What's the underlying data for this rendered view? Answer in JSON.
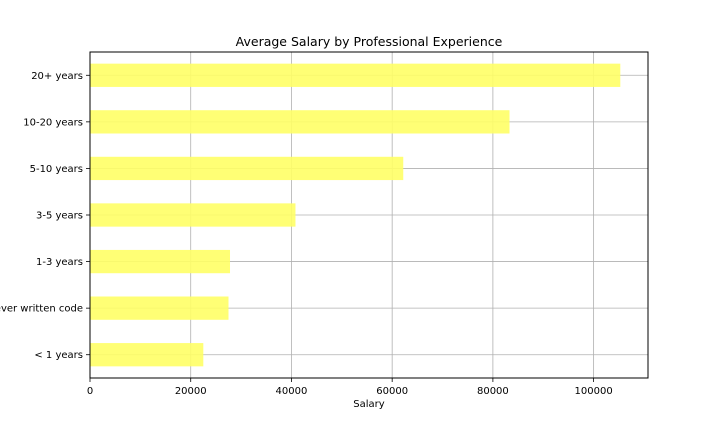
{
  "chart_data": {
    "type": "bar",
    "orientation": "horizontal",
    "title": "Average Salary by Professional Experience",
    "xlabel": "Salary",
    "ylabel": "",
    "categories": [
      "< 1 years",
      "I have never written code",
      "1-3 years",
      "3-5 years",
      "5-10 years",
      "10-20 years",
      "20+ years"
    ],
    "values": [
      22500,
      27500,
      27800,
      40800,
      62200,
      83300,
      105300
    ],
    "xlim": [
      0,
      110800
    ],
    "xticks": [
      0,
      20000,
      40000,
      60000,
      80000,
      100000
    ],
    "grid": true,
    "bar_color": "#ffff66",
    "legend": null
  }
}
